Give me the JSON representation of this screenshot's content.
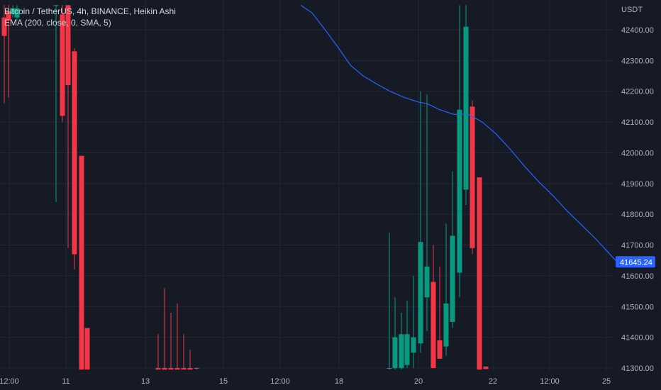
{
  "legend": {
    "title": "Bitcoin / TetherUS, 4h, BINANCE, Heikin Ashi",
    "indicator": "EMA (200, close, 0, SMA, 5)"
  },
  "colors": {
    "background": "#161a25",
    "grid": "#232735",
    "up": "#089981",
    "down": "#f23645",
    "ema": "#2962ff",
    "price_tag": "#2962ff",
    "axis_text": "#b2b5be"
  },
  "chart_data": {
    "type": "candlestick",
    "symbol": "Bitcoin / TetherUS",
    "timeframe": "4h",
    "exchange": "BINANCE",
    "style": "Heikin Ashi",
    "y_axis": {
      "unit": "USDT",
      "ticks": [
        41300,
        41400,
        41500,
        41600,
        41700,
        41800,
        41900,
        42000,
        42100,
        42200,
        42300,
        42400
      ],
      "tick_labels": [
        "41300.00",
        "41400.00",
        "41500.00",
        "41600.00",
        "41700.00",
        "41800.00",
        "41900.00",
        "42000.00",
        "42100.00",
        "42200.00",
        "42300.00",
        "42400.00"
      ],
      "visible_range": [
        41295,
        42480
      ]
    },
    "x_axis": {
      "tick_labels": [
        {
          "t": 13,
          "label": "12:00"
        },
        {
          "t": 93,
          "label": "11"
        },
        {
          "t": 205,
          "label": "13"
        },
        {
          "t": 315,
          "label": "15"
        },
        {
          "t": 395,
          "label": "12:00"
        },
        {
          "t": 478,
          "label": "18"
        },
        {
          "t": 590,
          "label": "20"
        },
        {
          "t": 695,
          "label": "22"
        },
        {
          "t": 775,
          "label": "12:00"
        },
        {
          "t": 855,
          "label": "25"
        }
      ]
    },
    "last_price": 41645.24,
    "last_price_label": "41645.24",
    "candles": [
      {
        "t": 6,
        "o": 42440,
        "h": 42480,
        "l": 42160,
        "c": 42380
      },
      {
        "t": 12,
        "o": 42460,
        "h": 42480,
        "l": 42180,
        "c": 42430
      },
      {
        "t": 18,
        "o": 42450,
        "h": 42480,
        "l": 42440,
        "c": 42470
      },
      {
        "t": 24,
        "o": 42440,
        "h": 42480,
        "l": 42430,
        "c": 42470
      },
      {
        "t": 79,
        "o": 42480,
        "h": 42480,
        "l": 41840,
        "c": 42480
      },
      {
        "t": 88,
        "o": 42450,
        "h": 42480,
        "l": 42100,
        "c": 42120
      },
      {
        "t": 96,
        "o": 42480,
        "h": 42480,
        "l": 41690,
        "c": 42220
      },
      {
        "t": 105,
        "o": 42330,
        "h": 42340,
        "l": 41620,
        "c": 41670
      },
      {
        "t": 115,
        "o": 41990,
        "h": 41990,
        "l": 41295,
        "c": 41295
      },
      {
        "t": 123,
        "o": 41430,
        "h": 41430,
        "l": 41295,
        "c": 41295
      },
      {
        "t": 223,
        "o": 41300,
        "h": 41410,
        "l": 41295,
        "c": 41295
      },
      {
        "t": 232,
        "o": 41300,
        "h": 41560,
        "l": 41295,
        "c": 41295
      },
      {
        "t": 241,
        "o": 41300,
        "h": 41480,
        "l": 41295,
        "c": 41295
      },
      {
        "t": 250,
        "o": 41300,
        "h": 41510,
        "l": 41295,
        "c": 41295
      },
      {
        "t": 259,
        "o": 41300,
        "h": 41410,
        "l": 41295,
        "c": 41295
      },
      {
        "t": 268,
        "o": 41300,
        "h": 41360,
        "l": 41295,
        "c": 41295
      },
      {
        "t": 277,
        "o": 41300,
        "h": 41302,
        "l": 41295,
        "c": 41298
      },
      {
        "t": 549,
        "o": 41300,
        "h": 41740,
        "l": 41295,
        "c": 41300
      },
      {
        "t": 557,
        "o": 41300,
        "h": 41530,
        "l": 41295,
        "c": 41400
      },
      {
        "t": 566,
        "o": 41300,
        "h": 41480,
        "l": 41295,
        "c": 41410
      },
      {
        "t": 574,
        "o": 41310,
        "h": 41520,
        "l": 41300,
        "c": 41410
      },
      {
        "t": 583,
        "o": 41350,
        "h": 41600,
        "l": 41300,
        "c": 41400
      },
      {
        "t": 593,
        "o": 41380,
        "h": 42200,
        "l": 41350,
        "c": 41710
      },
      {
        "t": 602,
        "o": 41530,
        "h": 42190,
        "l": 41420,
        "c": 41630
      },
      {
        "t": 611,
        "o": 41580,
        "h": 41700,
        "l": 41300,
        "c": 41300
      },
      {
        "t": 620,
        "o": 41390,
        "h": 41630,
        "l": 41330,
        "c": 41330
      },
      {
        "t": 629,
        "o": 41370,
        "h": 41770,
        "l": 41340,
        "c": 41510
      },
      {
        "t": 638,
        "o": 41450,
        "h": 41940,
        "l": 41430,
        "c": 41730
      },
      {
        "t": 648,
        "o": 41610,
        "h": 42480,
        "l": 41530,
        "c": 42140
      },
      {
        "t": 657,
        "o": 41880,
        "h": 42480,
        "l": 41830,
        "c": 42410
      },
      {
        "t": 666,
        "o": 42150,
        "h": 42170,
        "l": 41670,
        "c": 41690
      },
      {
        "t": 676,
        "o": 41920,
        "h": 41920,
        "l": 41295,
        "c": 41295
      },
      {
        "t": 685,
        "o": 41305,
        "h": 41305,
        "l": 41295,
        "c": 41297
      }
    ],
    "ema": {
      "name": "EMA (200, close, 0, SMA, 5)",
      "points": [
        [
          424,
          42480
        ],
        [
          440,
          42455
        ],
        [
          460,
          42395
        ],
        [
          476,
          42345
        ],
        [
          494,
          42285
        ],
        [
          512,
          42250
        ],
        [
          530,
          42225
        ],
        [
          550,
          42200
        ],
        [
          570,
          42180
        ],
        [
          590,
          42165
        ],
        [
          602,
          42160
        ],
        [
          620,
          42140
        ],
        [
          640,
          42125
        ],
        [
          660,
          42125
        ],
        [
          680,
          42100
        ],
        [
          700,
          42060
        ],
        [
          720,
          42010
        ],
        [
          740,
          41955
        ],
        [
          760,
          41905
        ],
        [
          780,
          41860
        ],
        [
          800,
          41810
        ],
        [
          820,
          41765
        ],
        [
          840,
          41720
        ],
        [
          860,
          41670
        ],
        [
          870,
          41645
        ]
      ]
    }
  }
}
